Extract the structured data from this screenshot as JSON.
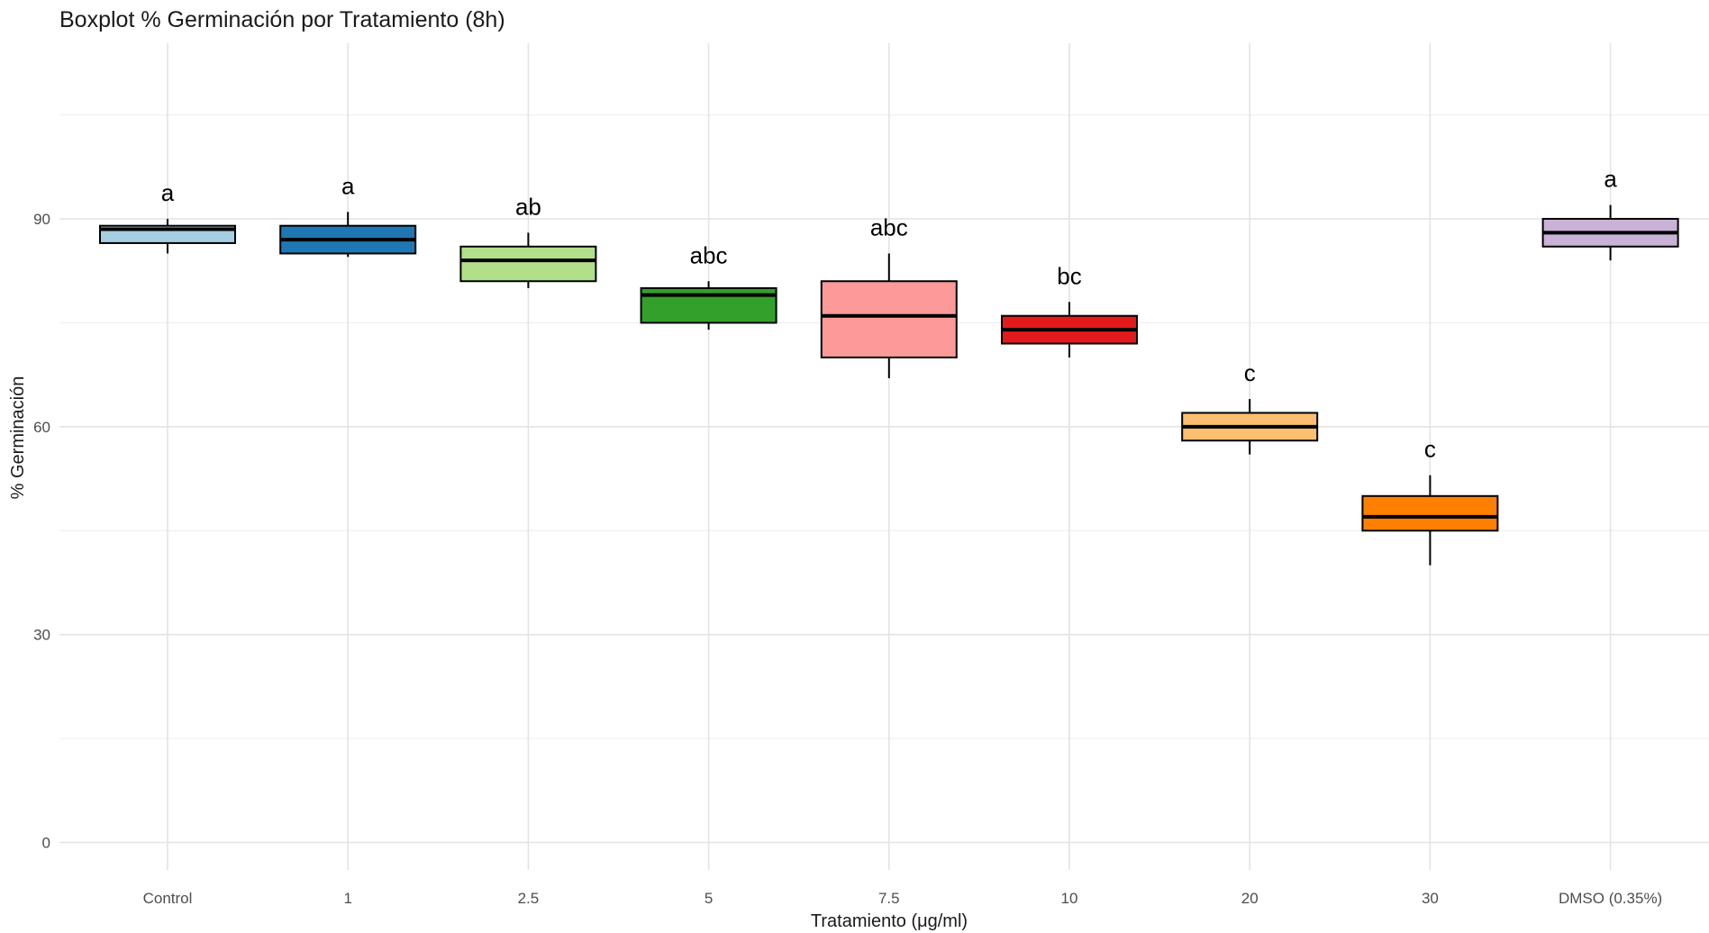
{
  "chart_data": {
    "type": "boxplot",
    "title": "Boxplot % Germinación por Tratamiento (8h)",
    "xlabel": "Tratamiento (μg/ml)",
    "ylabel": "% Germinación",
    "ylim": [
      -4,
      115
    ],
    "yticks": [
      0,
      30,
      60,
      90
    ],
    "grid": true,
    "legend": "none",
    "categories": [
      "Control",
      "1",
      "2.5",
      "5",
      "7.5",
      "10",
      "20",
      "30",
      "DMSO (0.35%)"
    ],
    "boxes": [
      {
        "category": "Control",
        "min": 85,
        "q1": 86.5,
        "median": 88.5,
        "q3": 89,
        "max": 90,
        "letter": "a",
        "color": "#a6cee3"
      },
      {
        "category": "1",
        "min": 84.5,
        "q1": 85,
        "median": 87,
        "q3": 89,
        "max": 91,
        "letter": "a",
        "color": "#1f78b4"
      },
      {
        "category": "2.5",
        "min": 80,
        "q1": 81,
        "median": 84,
        "q3": 86,
        "max": 88,
        "letter": "ab",
        "color": "#b2df8a"
      },
      {
        "category": "5",
        "min": 74,
        "q1": 75,
        "median": 79,
        "q3": 80,
        "max": 81,
        "letter": "abc",
        "color": "#33a02c"
      },
      {
        "category": "7.5",
        "min": 67,
        "q1": 70,
        "median": 76,
        "q3": 81,
        "max": 85,
        "letter": "abc",
        "color": "#fb9a99"
      },
      {
        "category": "10",
        "min": 70,
        "q1": 72,
        "median": 74,
        "q3": 76,
        "max": 78,
        "letter": "bc",
        "color": "#e31a1c"
      },
      {
        "category": "20",
        "min": 56,
        "q1": 58,
        "median": 60,
        "q3": 62,
        "max": 64,
        "letter": "c",
        "color": "#fdbf6f"
      },
      {
        "category": "30",
        "min": 40,
        "q1": 45,
        "median": 47,
        "q3": 50,
        "max": 53,
        "letter": "c",
        "color": "#ff7f00"
      },
      {
        "category": "DMSO (0.35%)",
        "min": 84,
        "q1": 86,
        "median": 88,
        "q3": 90,
        "max": 92,
        "letter": "a",
        "color": "#cab2d6"
      }
    ]
  }
}
